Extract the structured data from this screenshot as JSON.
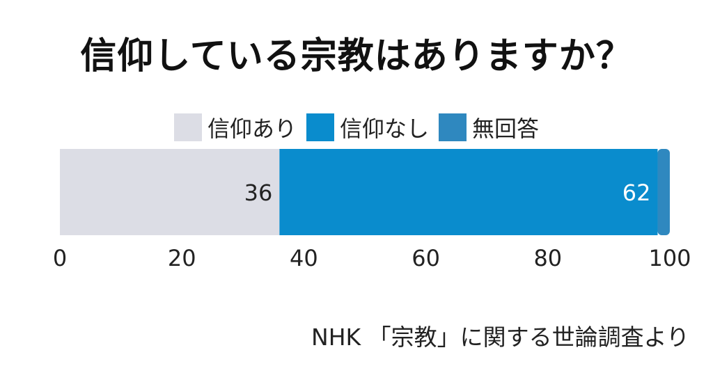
{
  "chart_data": {
    "type": "bar",
    "orientation": "horizontal",
    "stacked": true,
    "title": "信仰している宗教はありますか？",
    "xlim": [
      0,
      100
    ],
    "xticks": [
      "0",
      "20",
      "40",
      "60",
      "80",
      "100"
    ],
    "series": [
      {
        "name": "信仰あり",
        "values": [
          36
        ],
        "color": "#dcdde5",
        "label": "36",
        "label_color": "#222222"
      },
      {
        "name": "信仰なし",
        "values": [
          62
        ],
        "color": "#0a8ccd",
        "label": "62",
        "label_color": "#ffffff"
      },
      {
        "name": "無回答",
        "values": [
          2
        ],
        "color": "#2f88bf",
        "label": "",
        "label_color": "#ffffff"
      }
    ],
    "legend_position": "top-center",
    "grid": false
  },
  "source": "NHK 「宗教」に関する世論調査より"
}
